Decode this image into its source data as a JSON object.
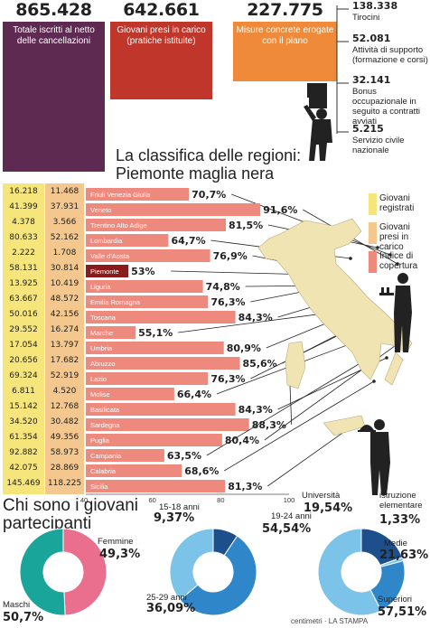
{
  "header": {
    "totals": [
      {
        "value": "865.428",
        "label": "Totale iscritti al netto delle cancellazioni",
        "color": "#5e2a52"
      },
      {
        "value": "642.661",
        "label": "Giovani presi in carico (pratiche istituite)",
        "color": "#c0362a"
      },
      {
        "value": "227.775",
        "label": "Misure concrete erogate con il piano",
        "color": "#ef8a3a"
      }
    ],
    "measures": [
      {
        "value": "138.338",
        "label": "Tirocini"
      },
      {
        "value": "52.081",
        "label": "Attività di supporto (formazione e corsi)"
      },
      {
        "value": "32.141",
        "label": "Bonus occupazionale in seguito a contratti avviati"
      },
      {
        "value": "5.215",
        "label": "Servizio civile nazionale"
      }
    ]
  },
  "ranking_title": "La classifica delle regioni: Piemonte maglia nera",
  "legend": [
    {
      "label": "Giovani registrati",
      "color": "#f6e57a"
    },
    {
      "label": "Giovani presi in carico",
      "color": "#f3c78e"
    },
    {
      "label": "Indice di copertura",
      "color": "#ee8a7d"
    }
  ],
  "colors": {
    "registrati": "#f6e57a",
    "presi": "#f3c78e",
    "bar": "#ee8a7d",
    "bar_highlight": "#8b1a1a",
    "donut_teal": "#1aa59b",
    "donut_pink": "#ea6f8f",
    "donut_blue_dark": "#1c4f8c",
    "donut_blue_mid": "#2f86c8",
    "donut_blue_light": "#7cc3ea"
  },
  "chart_data": [
    {
      "type": "bar",
      "title": "La classifica delle regioni: Piemonte maglia nera",
      "categories": [
        "Friuli Venezia Giulia",
        "Veneto",
        "Trentino Alto Adige",
        "Lombardia",
        "Valle d'Aosta",
        "Piemonte",
        "Liguria",
        "Emilia Romagna",
        "Toscana",
        "Marche",
        "Umbria",
        "Abruzzo",
        "Lazio",
        "Molise",
        "Basilicata",
        "Sardegna",
        "Puglia",
        "Campania",
        "Calabria",
        "Sicilia"
      ],
      "registrati": [
        "16.218",
        "41.399",
        "4.378",
        "80.633",
        "2.222",
        "58.131",
        "13.925",
        "63.667",
        "50.016",
        "29.552",
        "17.054",
        "20.656",
        "69.324",
        "6.811",
        "15.142",
        "34.520",
        "61.354",
        "92.882",
        "42.075",
        "145.469"
      ],
      "presi_in_carico": [
        "11.468",
        "37.931",
        "3.566",
        "52.162",
        "1.708",
        "30.814",
        "10.419",
        "48.572",
        "42.156",
        "16.274",
        "13.797",
        "17.682",
        "52.919",
        "4.520",
        "12.768",
        "30.482",
        "49.356",
        "58.973",
        "28.869",
        "118.225"
      ],
      "series": [
        {
          "name": "Indice di copertura",
          "values": [
            70.7,
            91.6,
            81.5,
            64.7,
            76.9,
            53,
            74.8,
            76.3,
            84.3,
            55.1,
            80.9,
            85.6,
            76.3,
            66.4,
            84.3,
            88.3,
            80.4,
            63.5,
            68.6,
            81.3
          ]
        }
      ],
      "value_labels": [
        "70,7%",
        "91,6%",
        "81,5%",
        "64,7%",
        "76,9%",
        "53%",
        "74,8%",
        "76,3%",
        "84,3%",
        "55,1%",
        "80,9%",
        "85,6%",
        "76,3%",
        "66,4%",
        "84,3%",
        "88,3%",
        "80,4%",
        "63,5%",
        "68,6%",
        "81,3%"
      ],
      "xlim": [
        40,
        100
      ],
      "xticks": [
        "40",
        "60",
        "80",
        "100"
      ],
      "highlight": "Piemonte"
    },
    {
      "type": "pie",
      "title": "Chi sono i giovani partecipanti",
      "categories": [
        "Femmine",
        "Maschi"
      ],
      "values": [
        49.3,
        50.7
      ],
      "labels": [
        "49,3%",
        "50,7%"
      ]
    },
    {
      "type": "pie",
      "categories": [
        "15-18 anni",
        "19-24 anni",
        "25-29 anni"
      ],
      "values": [
        9.37,
        54.54,
        36.09
      ],
      "labels": [
        "9,37%",
        "54,54%",
        "36,09%"
      ]
    },
    {
      "type": "pie",
      "categories": [
        "Università",
        "istruzione elementare",
        "Medie",
        "Superiori"
      ],
      "values": [
        19.54,
        1.33,
        21.63,
        57.51
      ],
      "labels": [
        "19,54%",
        "1,33%",
        "21,63%",
        "57,51%"
      ]
    }
  ],
  "credit": "centimetri · LA STAMPA"
}
